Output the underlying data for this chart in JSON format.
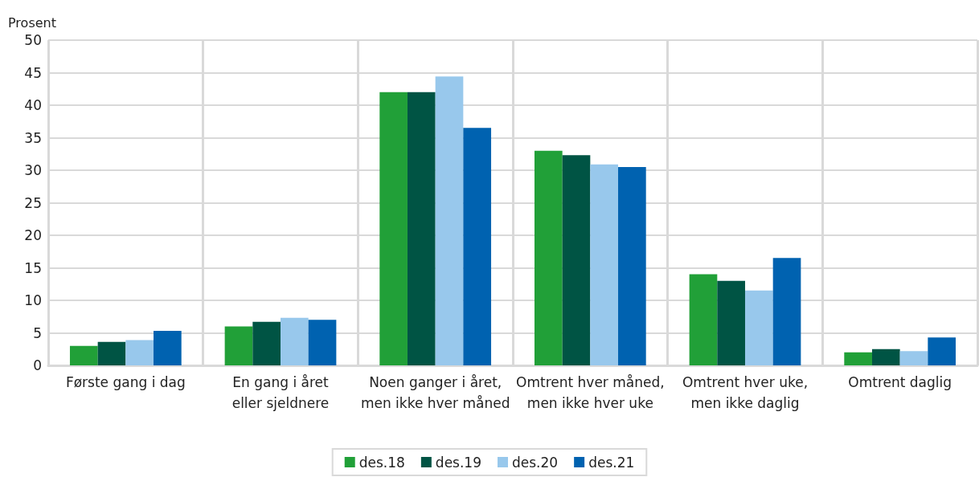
{
  "chart_data": {
    "type": "bar",
    "ylabel": "Prosent",
    "categories": [
      "Første gang i dag",
      "En gang i året eller sjeldnere",
      "Noen ganger i året, men ikke hver måned",
      "Omtrent hver måned, men ikke hver uke",
      "Omtrent hver uke, men ikke daglig",
      "Omtrent daglig"
    ],
    "series": [
      {
        "name": "des.18",
        "color": "#21a038",
        "values": [
          3.0,
          6.0,
          42.0,
          33.0,
          14.0,
          2.0
        ]
      },
      {
        "name": "des.19",
        "color": "#005444",
        "values": [
          3.6,
          6.7,
          42.0,
          32.3,
          13.0,
          2.5
        ]
      },
      {
        "name": "des.20",
        "color": "#98c8ec",
        "values": [
          3.9,
          7.3,
          44.4,
          30.9,
          11.5,
          2.2
        ]
      },
      {
        "name": "des.21",
        "color": "#0062b0",
        "values": [
          5.3,
          7.0,
          36.5,
          30.5,
          16.5,
          4.3
        ]
      }
    ],
    "ylim": [
      0,
      50
    ],
    "yticks": [
      0,
      5,
      10,
      15,
      20,
      25,
      30,
      35,
      40,
      45,
      50
    ],
    "grid": true,
    "legend": "bottom"
  }
}
